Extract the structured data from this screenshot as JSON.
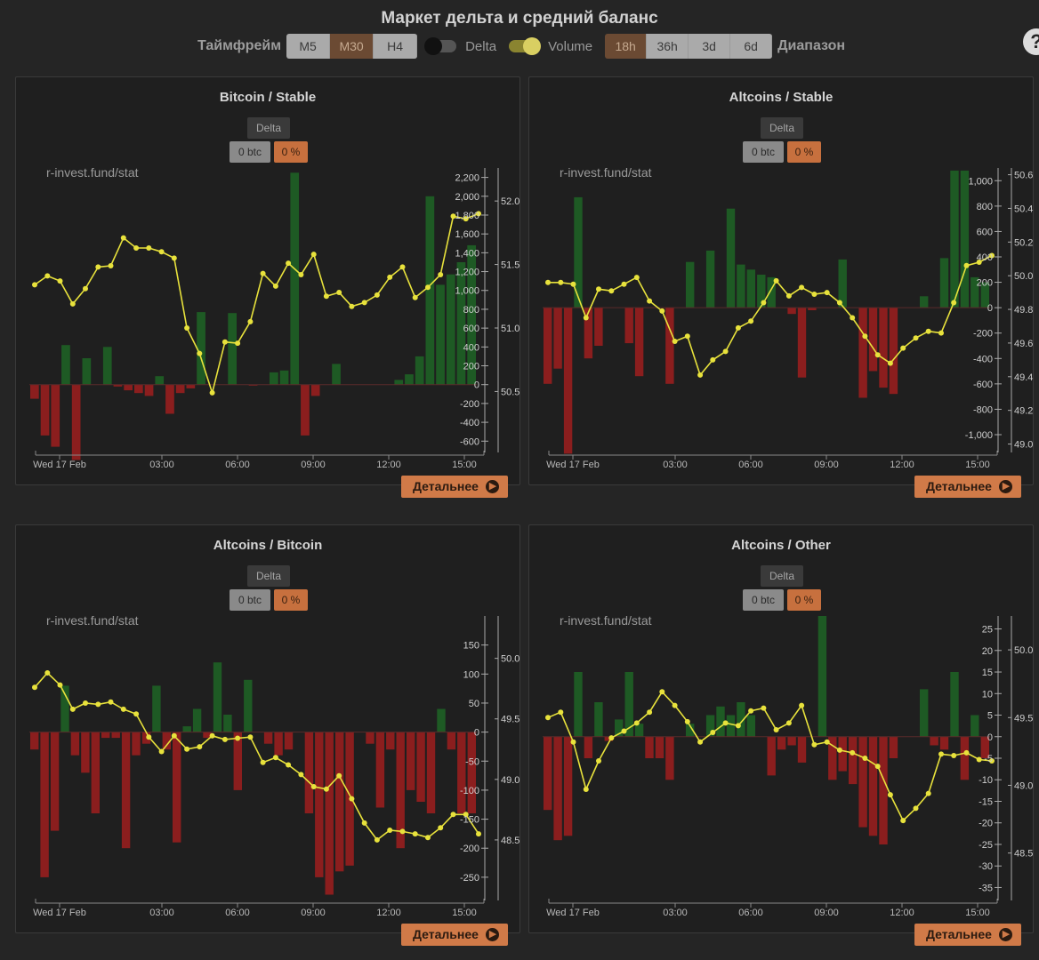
{
  "title": "Маркет дельта и средний баланс",
  "timeframe": {
    "label": "Таймфрейм",
    "options": [
      "M5",
      "M30",
      "H4"
    ],
    "selected": "M30"
  },
  "toggles": [
    {
      "label": "Delta",
      "on": false
    },
    {
      "label": "Volume",
      "on": true
    }
  ],
  "range": {
    "label": "Диапазон",
    "options": [
      "18h",
      "36h",
      "3d",
      "6d"
    ],
    "selected": "18h"
  },
  "help_label": "?",
  "colors": {
    "positive_bar": "#1e5a24",
    "negative_bar": "#8b1e1e",
    "line": "#e8e23c",
    "accent": "#d07a48"
  },
  "x_ticks": [
    "Wed 17 Feb",
    "03:00",
    "06:00",
    "09:00",
    "12:00",
    "15:00"
  ],
  "panels": [
    {
      "title": "Bitcoin / Stable",
      "delta_label": "Delta",
      "btc_value": "0 btc",
      "pct_value": "0 %",
      "watermark": "r-invest.fund/stat",
      "button": "Детальнее"
    },
    {
      "title": "Altcoins / Stable",
      "delta_label": "Delta",
      "btc_value": "0 btc",
      "pct_value": "0 %",
      "watermark": "r-invest.fund/stat",
      "button": "Детальнее"
    },
    {
      "title": "Altcoins / Bitcoin",
      "delta_label": "Delta",
      "btc_value": "0 btc",
      "pct_value": "0 %",
      "watermark": "r-invest.fund/stat",
      "button": "Детальнее"
    },
    {
      "title": "Altcoins / Other",
      "delta_label": "Delta",
      "btc_value": "0 btc",
      "pct_value": "0 %",
      "watermark": "r-invest.fund/stat",
      "button": "Детальнее"
    }
  ],
  "chart_data": [
    {
      "type": "bar",
      "title": "Bitcoin / Stable",
      "x_ticks": [
        "Wed 17 Feb",
        "03:00",
        "06:00",
        "09:00",
        "12:00",
        "15:00"
      ],
      "left_axis": {
        "ticks": [
          -600,
          -400,
          -200,
          0,
          200,
          400,
          600,
          800,
          1000,
          1200,
          1400,
          1600,
          1800,
          2000,
          2200
        ],
        "range": [
          -720,
          2300
        ]
      },
      "right_axis": {
        "ticks": [
          50.5,
          51.0,
          51.5,
          52.0
        ],
        "range": [
          50.02,
          52.26
        ]
      },
      "bars": [
        -150,
        -540,
        -660,
        420,
        -800,
        280,
        0,
        400,
        -20,
        -60,
        -90,
        -120,
        90,
        -310,
        -90,
        -40,
        770,
        0,
        0,
        760,
        0,
        -10,
        0,
        130,
        150,
        2250,
        -540,
        -120,
        0,
        220,
        0,
        0,
        0,
        0,
        0,
        50,
        110,
        300,
        2000,
        1060,
        1170,
        1300,
        1480
      ],
      "line": [
        51.34,
        51.41,
        51.37,
        51.19,
        51.31,
        51.48,
        51.49,
        51.71,
        51.63,
        51.63,
        51.6,
        51.55,
        51.0,
        50.8,
        50.49,
        50.89,
        50.88,
        51.05,
        51.43,
        51.33,
        51.51,
        51.42,
        51.58,
        51.25,
        51.28,
        51.17,
        51.2,
        51.26,
        51.4,
        51.48,
        51.24,
        51.32,
        51.42,
        51.88,
        51.86,
        51.9
      ]
    },
    {
      "type": "bar",
      "title": "Altcoins / Stable",
      "x_ticks": [
        "Wed 17 Feb",
        "03:00",
        "06:00",
        "09:00",
        "12:00",
        "15:00"
      ],
      "left_axis": {
        "ticks": [
          -1000,
          -800,
          -600,
          -400,
          -200,
          0,
          200,
          400,
          600,
          800,
          1000
        ],
        "range": [
          -1140,
          1100
        ]
      },
      "right_axis": {
        "ticks": [
          49.0,
          49.2,
          49.4,
          49.6,
          49.8,
          50.0,
          50.2,
          50.4,
          50.6
        ],
        "range": [
          48.95,
          50.64
        ]
      },
      "bars": [
        -600,
        -480,
        -1150,
        870,
        -400,
        -300,
        0,
        0,
        -280,
        -540,
        0,
        0,
        -600,
        0,
        360,
        0,
        450,
        0,
        780,
        340,
        300,
        260,
        240,
        0,
        -50,
        -550,
        -20,
        0,
        0,
        380,
        0,
        -710,
        -500,
        -630,
        -680,
        0,
        0,
        90,
        0,
        390,
        1080,
        1080,
        240,
        200
      ],
      "line": [
        49.96,
        49.96,
        49.95,
        49.75,
        49.92,
        49.91,
        49.95,
        49.99,
        49.85,
        49.79,
        49.61,
        49.64,
        49.41,
        49.5,
        49.55,
        49.69,
        49.73,
        49.84,
        49.97,
        49.88,
        49.93,
        49.89,
        49.9,
        49.84,
        49.75,
        49.64,
        49.53,
        49.48,
        49.57,
        49.63,
        49.67,
        49.66,
        49.84,
        50.06,
        50.08,
        50.12
      ]
    },
    {
      "type": "bar",
      "title": "Altcoins / Bitcoin",
      "x_ticks": [
        "Wed 17 Feb",
        "03:00",
        "06:00",
        "09:00",
        "12:00",
        "15:00"
      ],
      "left_axis": {
        "ticks": [
          -250,
          -200,
          -150,
          -100,
          -50,
          0,
          50,
          100,
          150
        ],
        "range": [
          -290,
          200
        ]
      },
      "right_axis": {
        "ticks": [
          48.5,
          49.0,
          49.5,
          50.0
        ],
        "range": [
          48.0,
          50.35
        ]
      },
      "bars": [
        -30,
        -250,
        -170,
        80,
        -40,
        -70,
        -140,
        -10,
        -10,
        -200,
        -40,
        -20,
        80,
        -30,
        -190,
        10,
        40,
        -10,
        120,
        30,
        -100,
        90,
        0,
        -20,
        -40,
        -30,
        0,
        -140,
        -250,
        -280,
        -240,
        -230,
        0,
        -20,
        -130,
        -30,
        -200,
        -100,
        -120,
        -140,
        40,
        -30,
        -140,
        -140
      ],
      "line": [
        49.76,
        49.88,
        49.78,
        49.58,
        49.63,
        49.62,
        49.64,
        49.58,
        49.54,
        49.35,
        49.23,
        49.36,
        49.25,
        49.27,
        49.36,
        49.33,
        49.34,
        49.35,
        49.14,
        49.18,
        49.12,
        49.04,
        48.94,
        48.92,
        49.03,
        48.84,
        48.64,
        48.5,
        48.58,
        48.57,
        48.55,
        48.52,
        48.6,
        48.71,
        48.71,
        48.55
      ]
    },
    {
      "type": "bar",
      "title": "Altcoins / Other",
      "x_ticks": [
        "Wed 17 Feb",
        "03:00",
        "06:00",
        "09:00",
        "12:00",
        "15:00"
      ],
      "left_axis": {
        "ticks": [
          -35,
          -30,
          -25,
          -20,
          -15,
          -10,
          -5,
          0,
          5,
          10,
          15,
          20,
          25
        ],
        "range": [
          -38,
          28
        ]
      },
      "right_axis": {
        "ticks": [
          48.5,
          49.0,
          49.5,
          50.0
        ],
        "range": [
          48.15,
          50.25
        ]
      },
      "bars": [
        -17,
        -24,
        -23,
        15,
        -5,
        8,
        -1,
        4,
        15,
        3,
        -5,
        -5,
        -10,
        0,
        3,
        0,
        5,
        7,
        5,
        8,
        5,
        0,
        -9,
        -3,
        -2,
        -6,
        0,
        28,
        -10,
        -8,
        -11,
        -21,
        -23,
        -25,
        -5,
        0,
        0,
        11,
        -2,
        -3,
        15,
        -10,
        5,
        -5
      ],
      "line": [
        49.5,
        49.54,
        49.32,
        48.97,
        49.18,
        49.35,
        49.4,
        49.46,
        49.54,
        49.69,
        49.59,
        49.47,
        49.32,
        49.39,
        49.46,
        49.44,
        49.55,
        49.57,
        49.41,
        49.46,
        49.59,
        49.3,
        49.32,
        49.26,
        49.24,
        49.2,
        49.14,
        48.93,
        48.74,
        48.83,
        48.94,
        49.23,
        49.22,
        49.24,
        49.19,
        49.18
      ]
    }
  ]
}
